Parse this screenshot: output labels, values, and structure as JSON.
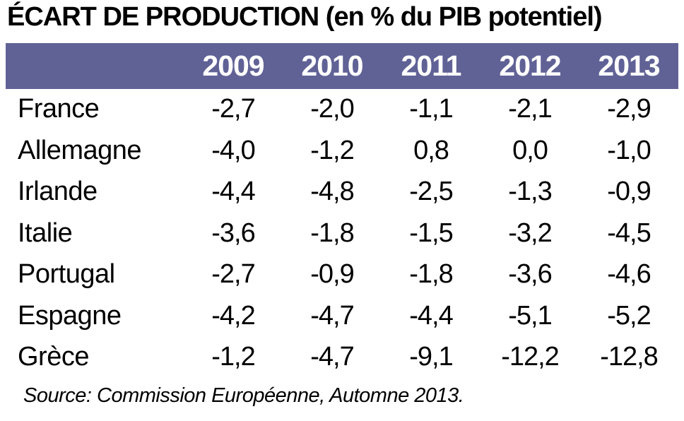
{
  "title": "ÉCART DE PRODUCTION (en % du PIB potentiel)",
  "colors": {
    "header_band": "#606296",
    "header_text": "#ffffff",
    "body_text": "#000000",
    "background": "#ffffff"
  },
  "table": {
    "year_headers": [
      "2009",
      "2010",
      "2011",
      "2012",
      "2013"
    ],
    "rows": [
      {
        "label": "France",
        "values": [
          "-2,7",
          "-2,0",
          "-1,1",
          "-2,1",
          "-2,9"
        ]
      },
      {
        "label": "Allemagne",
        "values": [
          "-4,0",
          "-1,2",
          "0,8",
          "0,0",
          "-1,0"
        ]
      },
      {
        "label": "Irlande",
        "values": [
          "-4,4",
          "-4,8",
          "-2,5",
          "-1,3",
          "-0,9"
        ]
      },
      {
        "label": "Italie",
        "values": [
          "-3,6",
          "-1,8",
          "-1,5",
          "-3,2",
          "-4,5"
        ]
      },
      {
        "label": "Portugal",
        "values": [
          "-2,7",
          "-0,9",
          "-1,8",
          "-3,6",
          "-4,6"
        ]
      },
      {
        "label": "Espagne",
        "values": [
          "-4,2",
          "-4,7",
          "-4,4",
          "-5,1",
          "-5,2"
        ]
      },
      {
        "label": "Grèce",
        "values": [
          "-1,2",
          "-4,7",
          "-9,1",
          "-12,2",
          "-12,8"
        ]
      }
    ]
  },
  "source_line": "Source: Commission Européenne, Automne 2013.",
  "chart_data": {
    "type": "table",
    "title": "ÉCART DE PRODUCTION (en % du PIB potentiel)",
    "unit": "% du PIB potentiel",
    "categories": [
      2009,
      2010,
      2011,
      2012,
      2013
    ],
    "series": [
      {
        "name": "France",
        "values": [
          -2.7,
          -2.0,
          -1.1,
          -2.1,
          -2.9
        ]
      },
      {
        "name": "Allemagne",
        "values": [
          -4.0,
          -1.2,
          0.8,
          0.0,
          -1.0
        ]
      },
      {
        "name": "Irlande",
        "values": [
          -4.4,
          -4.8,
          -2.5,
          -1.3,
          -0.9
        ]
      },
      {
        "name": "Italie",
        "values": [
          -3.6,
          -1.8,
          -1.5,
          -3.2,
          -4.5
        ]
      },
      {
        "name": "Portugal",
        "values": [
          -2.7,
          -0.9,
          -1.8,
          -3.6,
          -4.6
        ]
      },
      {
        "name": "Espagne",
        "values": [
          -4.2,
          -4.7,
          -4.4,
          -5.1,
          -5.2
        ]
      },
      {
        "name": "Grèce",
        "values": [
          -1.2,
          -4.7,
          -9.1,
          -12.2,
          -12.8
        ]
      }
    ],
    "source": "Commission Européenne, Automne 2013"
  }
}
